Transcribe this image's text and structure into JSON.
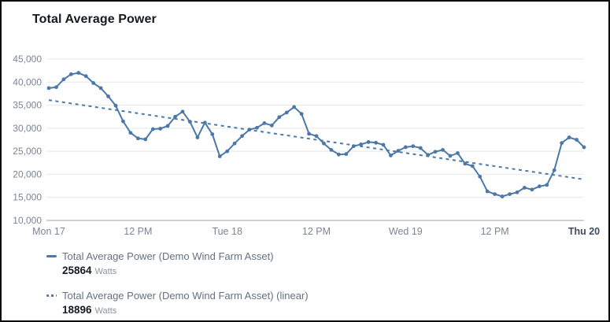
{
  "widget": {
    "title": "Total Average Power"
  },
  "colors": {
    "accent": "#4c78a8",
    "grid": "#e5e7e9",
    "axis_line": "#cdd1d6",
    "tick_text": "#7b8594",
    "tick_text_emphasis": "#414d5c",
    "title_text": "#16191f",
    "legend_text": "#64717f",
    "value_text": "#16191f",
    "unit_text": "#8a949e"
  },
  "chart_data": {
    "type": "line",
    "title": "Total Average Power",
    "grid": true,
    "legend_position": "bottom",
    "x_axis": {
      "range_hours": 72,
      "tick_labels": [
        "Mon 17",
        "12 PM",
        "Tue 18",
        "12 PM",
        "Wed 19",
        "12 PM",
        "Thu 20"
      ],
      "ticks": [
        {
          "label": "Mon 17",
          "hour": 0,
          "emphasis": false
        },
        {
          "label": "12 PM",
          "hour": 12,
          "emphasis": false
        },
        {
          "label": "Tue 18",
          "hour": 24,
          "emphasis": false
        },
        {
          "label": "12 PM",
          "hour": 36,
          "emphasis": false
        },
        {
          "label": "Wed 19",
          "hour": 48,
          "emphasis": false
        },
        {
          "label": "12 PM",
          "hour": 60,
          "emphasis": false
        },
        {
          "label": "Thu 20",
          "hour": 72,
          "emphasis": true
        }
      ]
    },
    "y_axis": {
      "ylim": [
        10000,
        45000
      ],
      "ticks": [
        {
          "value": 45000,
          "label": "45,000"
        },
        {
          "value": 40000,
          "label": "40,000"
        },
        {
          "value": 35000,
          "label": "35,000"
        },
        {
          "value": 30000,
          "label": "30,000"
        },
        {
          "value": 25000,
          "label": "25,000"
        },
        {
          "value": 20000,
          "label": "20,000"
        },
        {
          "value": 15000,
          "label": "15,000"
        },
        {
          "value": 10000,
          "label": "10,000"
        }
      ]
    },
    "series": [
      {
        "name": "Total Average Power (Demo Wind Farm Asset)",
        "style": "solid-markers",
        "unit": "Watts",
        "latest_value": 25864,
        "x_hours_step": 1,
        "values": [
          38700,
          38900,
          40600,
          41700,
          42000,
          41300,
          39800,
          38700,
          36900,
          34900,
          31500,
          29000,
          27800,
          27600,
          29800,
          29900,
          30500,
          32500,
          33600,
          31400,
          28000,
          31200,
          28700,
          23900,
          25000,
          26700,
          28300,
          29700,
          30100,
          31100,
          30600,
          32400,
          33400,
          34600,
          33100,
          28800,
          28300,
          26700,
          25300,
          24300,
          24400,
          26100,
          26500,
          27000,
          26850,
          26400,
          24100,
          25100,
          25900,
          26100,
          25700,
          24200,
          24900,
          25300,
          24000,
          24600,
          22300,
          21800,
          19500,
          16300,
          15700,
          15200,
          15700,
          16100,
          17100,
          16700,
          17400,
          17700,
          20900,
          26800,
          28000,
          27500,
          25864
        ]
      },
      {
        "name": "Total Average Power (Demo Wind Farm Asset) (linear)",
        "style": "dashed-trend",
        "unit": "Watts",
        "latest_value": 18896,
        "trend_start_value": 36100,
        "trend_end_value": 18896
      }
    ]
  },
  "legend": {
    "items": [
      {
        "label": "Total Average Power (Demo Wind Farm Asset)",
        "value": "25864",
        "unit": "Watts",
        "swatch": "solid-line"
      },
      {
        "label": "Total Average Power (Demo Wind Farm Asset) (linear)",
        "value": "18896",
        "unit": "Watts",
        "swatch": "dashed-line"
      }
    ]
  }
}
